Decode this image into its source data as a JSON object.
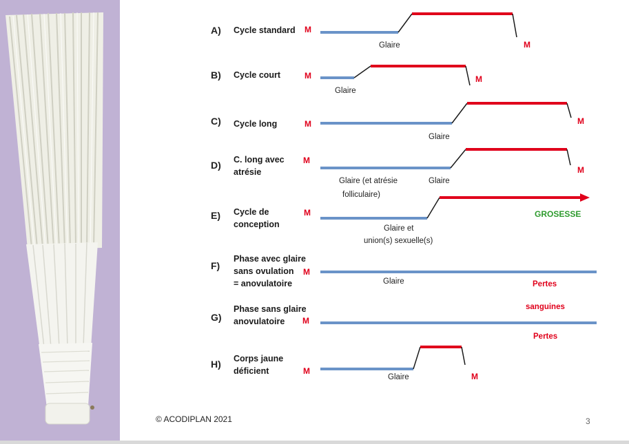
{
  "colors": {
    "blue_line": "#6a93c8",
    "red_line": "#e0001b",
    "connector": "#1a1a1a",
    "green": "#2e9b2e",
    "photo_bg": "#b8a9cf"
  },
  "rows": [
    {
      "letter": "A)",
      "title": "Cycle standard",
      "m_start": "M",
      "m_end": "M",
      "caption": "Glaire"
    },
    {
      "letter": "B)",
      "title": "Cycle court",
      "m_start": "M",
      "m_end": "M",
      "caption": "Glaire"
    },
    {
      "letter": "C)",
      "title": "Cycle long",
      "m_start": "M",
      "m_end": "M",
      "caption": "Glaire"
    },
    {
      "letter": "D)",
      "title_line1": "C. long avec",
      "title_line2": "atrésie",
      "m_start": "M",
      "m_end": "M",
      "caption1_line1": "Glaire (et atrésie",
      "caption1_line2": "folliculaire)",
      "caption2": "Glaire"
    },
    {
      "letter": "E)",
      "title_line1": "Cycle de",
      "title_line2": "conception",
      "m_start": "M",
      "caption_line1": "Glaire et",
      "caption_line2": "union(s) sexuelle(s)",
      "end_label": "GROSESSE"
    },
    {
      "letter": "F)",
      "title_line1": "Phase avec glaire",
      "title_line2": "sans ovulation",
      "title_line3": "= anovulatoire",
      "m_start": "M",
      "caption": "Glaire",
      "red_label": "Pertes"
    },
    {
      "letter": "G)",
      "title_line1": "Phase sans glaire",
      "title_line2": "anovulatoire",
      "m_start": "M",
      "red_label_above": "sanguines",
      "red_label_below": "Pertes"
    },
    {
      "letter": "H)",
      "title_line1": "Corps jaune",
      "title_line2": "déficient",
      "m_start": "M",
      "m_end": "M",
      "caption": "Glaire"
    }
  ],
  "footer": {
    "copyright": "© ACODIPLAN 2021",
    "page_number": "3"
  }
}
